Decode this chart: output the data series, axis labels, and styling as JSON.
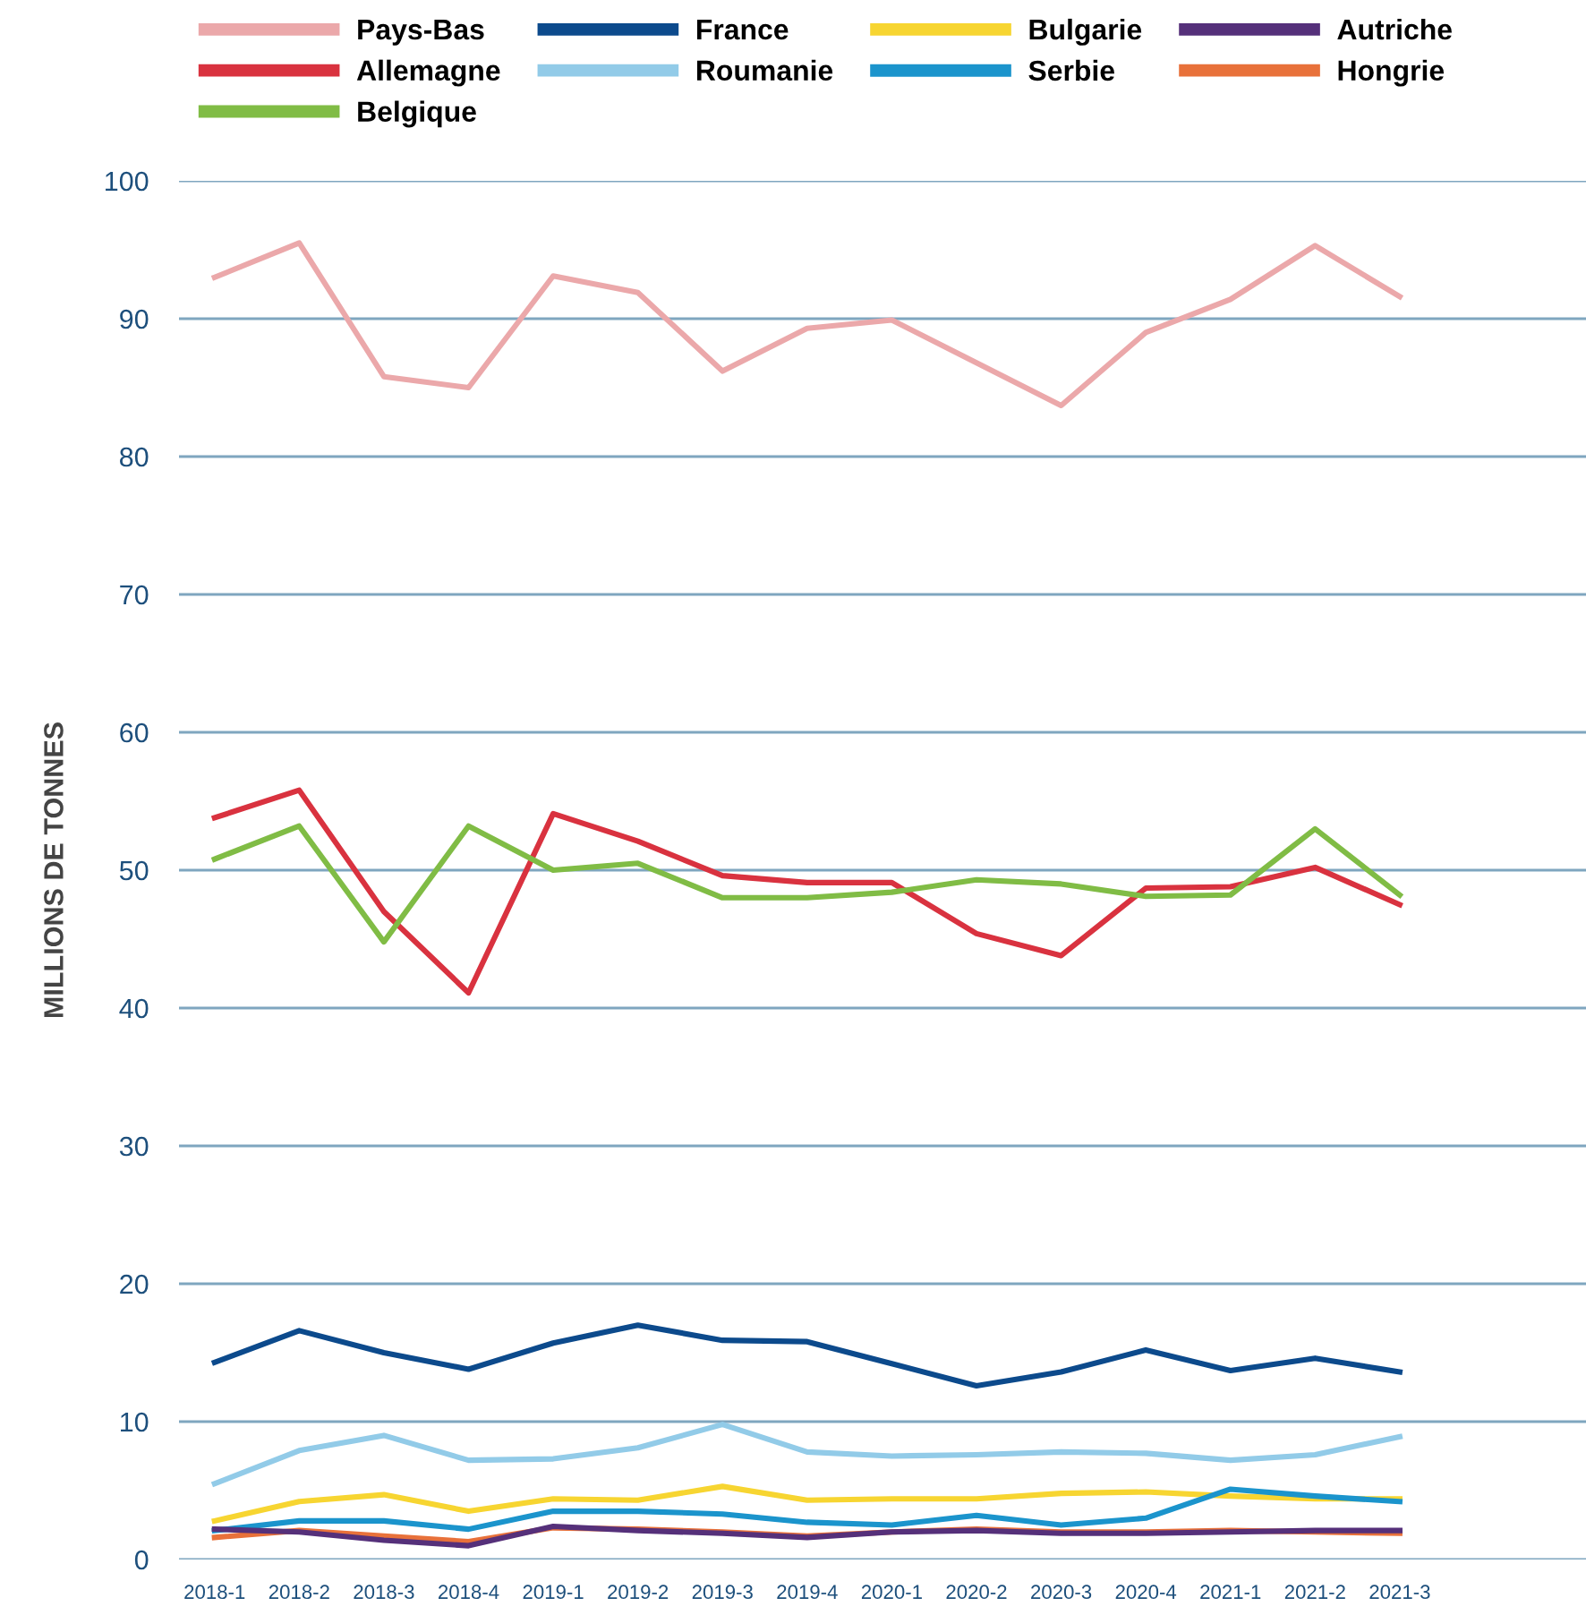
{
  "chart_data": {
    "type": "line",
    "ylabel": "MILLIONS DE TONNES",
    "categories": [
      "2018-1",
      "2018-2",
      "2018-3",
      "2018-4",
      "2019-1",
      "2019-2",
      "2019-3",
      "2019-4",
      "2020-1",
      "2020-2",
      "2020-3",
      "2020-4",
      "2021-1",
      "2021-2",
      "2021-3"
    ],
    "ylim": [
      0,
      100
    ],
    "yticks": [
      0,
      10,
      20,
      30,
      40,
      50,
      60,
      70,
      80,
      90,
      100
    ],
    "grid": "y",
    "legend": "top",
    "line_style": "solid",
    "marker": "none",
    "series": [
      {
        "name": "Pays-Bas",
        "color": "#eba8aa",
        "values": [
          93,
          95.5,
          85.8,
          85,
          93.1,
          91.9,
          86.2,
          89.3,
          89.9,
          86.8,
          83.7,
          89,
          91.4,
          95.3,
          91.6
        ]
      },
      {
        "name": "Allemagne",
        "color": "#d9323f",
        "values": [
          53.8,
          55.8,
          47,
          41.1,
          54.1,
          52.1,
          49.6,
          49.1,
          49.1,
          45.4,
          43.8,
          48.7,
          48.8,
          50.2,
          47.5
        ]
      },
      {
        "name": "Belgique",
        "color": "#80bc45",
        "values": [
          50.8,
          53.2,
          44.8,
          53.2,
          50.0,
          50.5,
          48,
          48,
          48.4,
          49.3,
          49.0,
          48.1,
          48.2,
          53,
          48.2
        ]
      },
      {
        "name": "France",
        "color": "#0c4a8c",
        "values": [
          14.3,
          16.6,
          15,
          13.8,
          15.7,
          17,
          15.9,
          15.8,
          14.2,
          12.6,
          13.6,
          15.2,
          13.7,
          14.6,
          13.6
        ]
      },
      {
        "name": "Roumanie",
        "color": "#92cbe8",
        "values": [
          5.5,
          7.9,
          9,
          7.2,
          7.3,
          8.1,
          9.8,
          7.8,
          7.5,
          7.6,
          7.8,
          7.7,
          7.2,
          7.6,
          8.9
        ]
      },
      {
        "name": "Bulgarie",
        "color": "#f7d531",
        "values": [
          2.8,
          4.2,
          4.7,
          3.5,
          4.4,
          4.3,
          5.3,
          4.3,
          4.4,
          4.4,
          4.8,
          4.9,
          4.6,
          4.4,
          4.4
        ]
      },
      {
        "name": "Serbie",
        "color": "#1b94cc",
        "values": [
          2.1,
          2.8,
          2.8,
          2.2,
          3.5,
          3.5,
          3.3,
          2.7,
          2.5,
          3.2,
          2.5,
          3.0,
          5.1,
          4.6,
          4.2
        ]
      },
      {
        "name": "Autriche",
        "color": "#55307a",
        "values": [
          2.2,
          2.0,
          1.4,
          1.0,
          2.4,
          2.1,
          1.9,
          1.6,
          2.0,
          2.1,
          1.9,
          1.9,
          2.0,
          2.1,
          2.1
        ]
      },
      {
        "name": "Hongrie",
        "color": "#e8713a",
        "values": [
          1.6,
          2.1,
          1.7,
          1.3,
          2.3,
          2.2,
          2.0,
          1.7,
          2.0,
          2.2,
          2.0,
          2.0,
          2.1,
          2.0,
          1.9
        ]
      }
    ]
  }
}
